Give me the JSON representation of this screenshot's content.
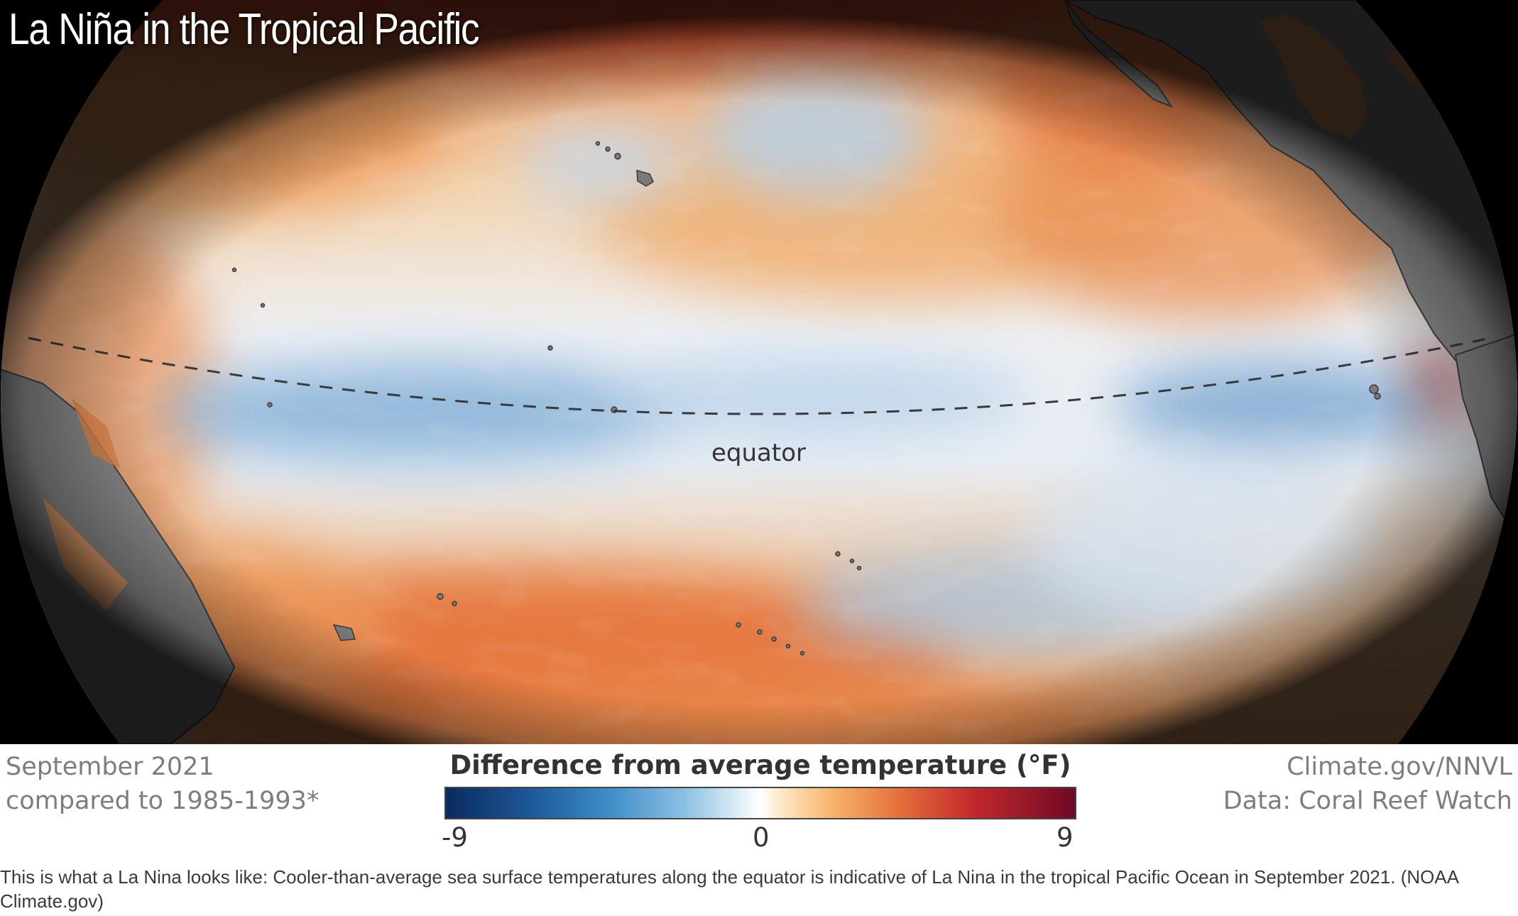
{
  "map": {
    "title": "La Niña in the Tropical Pacific",
    "equator_label": "equator",
    "colors": {
      "ocean_cool": "#4f8fc4",
      "ocean_neutral": "#f2f4f7",
      "ocean_warm": "#e27d3e",
      "land": "#8c8c8c",
      "background": "#000000"
    }
  },
  "legend": {
    "date_line_1": "September 2021",
    "date_line_2": "compared to 1985-1993*",
    "title": "Difference from average temperature (°F)",
    "scale_min": "-9",
    "scale_mid": "0",
    "scale_max": "9",
    "credit_line_1": "Climate.gov/NNVL",
    "credit_line_2": "Data: Coral Reef Watch"
  },
  "caption": "This is what a La Nina looks like: Cooler-than-average sea surface temperatures along the equator is indicative of La Nina in the tropical Pacific Ocean in September 2021. (NOAA Climate.gov)"
}
